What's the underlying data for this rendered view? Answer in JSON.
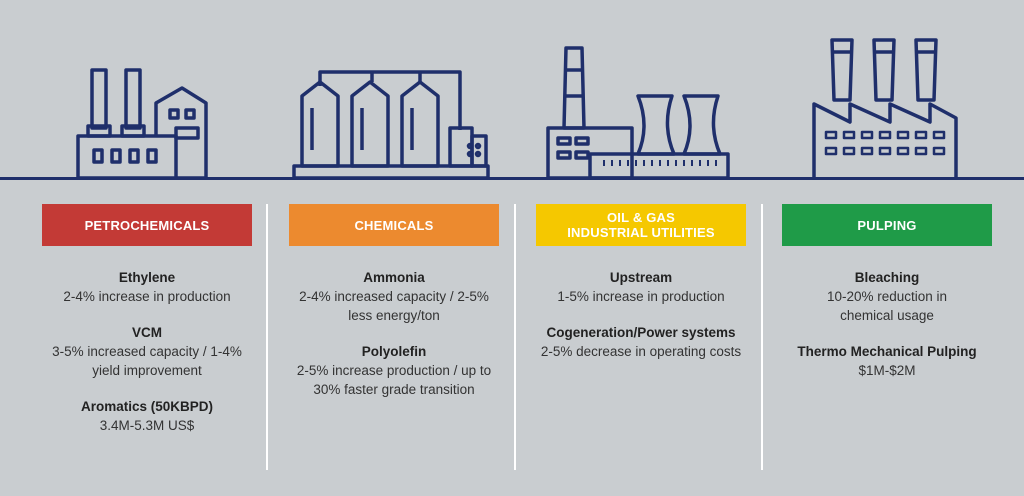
{
  "colors": {
    "petrochemicals": "#c33a36",
    "chemicals": "#ec8a2f",
    "oil_gas": "#f5c800",
    "pulping": "#1f9b48",
    "icon_stroke": "#1f2f6b"
  },
  "icons": [
    "refinery-icon",
    "chemical-silos-icon",
    "power-plant-icon",
    "pulp-mill-icon"
  ],
  "columns": [
    {
      "banner": "PETROCHEMICALS",
      "items": [
        {
          "title": "Ethylene",
          "desc": "2-4% increase in production"
        },
        {
          "title": "VCM",
          "desc": "3-5% increased capacity / 1-4%\nyield improvement"
        },
        {
          "title": "Aromatics (50KBPD)",
          "desc": "3.4M-5.3M US$"
        }
      ]
    },
    {
      "banner": "CHEMICALS",
      "items": [
        {
          "title": "Ammonia",
          "desc": "2-4% increased capacity / 2-5%\nless energy/ton"
        },
        {
          "title": "Polyolefin",
          "desc": "2-5% increase production / up to\n30% faster grade transition"
        }
      ]
    },
    {
      "banner": "OIL & GAS\nINDUSTRIAL UTILITIES",
      "items": [
        {
          "title": "Upstream",
          "desc": "1-5% increase in production"
        },
        {
          "title": "Cogeneration/Power systems",
          "desc": "2-5% decrease in operating costs"
        }
      ]
    },
    {
      "banner": "PULPING",
      "items": [
        {
          "title": "Bleaching",
          "desc": "10-20% reduction in\nchemical usage"
        },
        {
          "title": "Thermo Mechanical Pulping",
          "desc": "$1M-$2M"
        }
      ]
    }
  ]
}
